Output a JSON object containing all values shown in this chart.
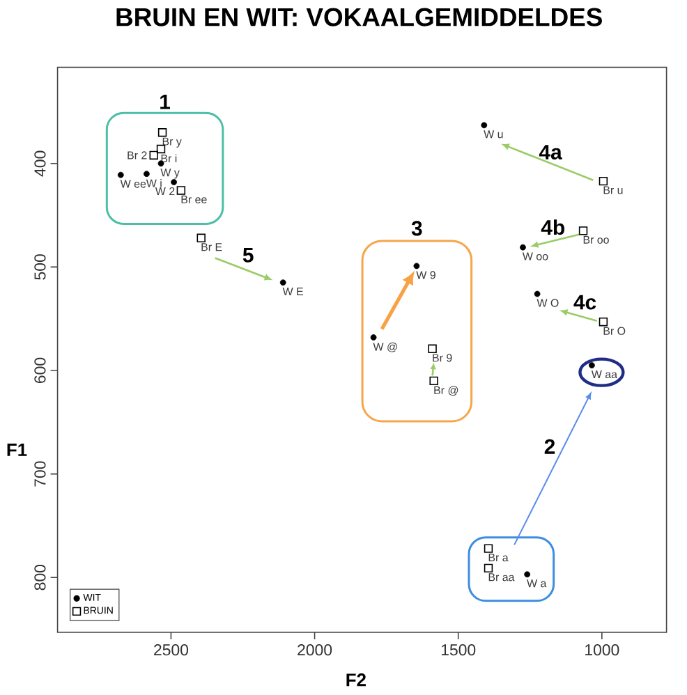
{
  "chart_data": {
    "type": "scatter",
    "title": "BRUIN EN WIT: VOKAALGEMIDDELDES",
    "xlabel": "F2",
    "ylabel": "F1",
    "xlim": [
      2895,
      775
    ],
    "ylim": [
      853,
      307
    ],
    "xticks": [
      2500,
      2000,
      1500,
      1000
    ],
    "yticks": [
      400,
      500,
      600,
      700,
      800
    ],
    "legend": "bottom left",
    "series": [
      {
        "name": "WIT",
        "color": "#000000",
        "marker": "circle",
        "x": [
          2675,
          2585,
          2535,
          2490,
          2110,
          1410,
          1275,
          1225,
          1645,
          1795,
          1035,
          1260
        ],
        "values": [
          411,
          410,
          400,
          418,
          515,
          363,
          481,
          526,
          499,
          568,
          595,
          797
        ],
        "value_labels": [
          "W ee",
          "W i",
          "W y",
          "W 2",
          "W E",
          "W u",
          "W oo",
          "W O",
          "W 9",
          "W @",
          "W aa",
          "W a"
        ]
      },
      {
        "name": "BRUIN",
        "color": "#000000",
        "marker": "square",
        "x": [
          2530,
          2535,
          2560,
          2465,
          2395,
          995,
          1065,
          995,
          1590,
          1585,
          1395,
          1395
        ],
        "values": [
          370,
          386,
          392,
          426,
          472,
          417,
          465,
          553,
          579,
          610,
          772,
          791
        ],
        "value_labels": [
          "Br y",
          "Br i",
          "Br 2",
          "Br ee",
          "Br E",
          "Br u",
          "Br oo",
          "Br O",
          "Br 9",
          "Br @",
          "Br a",
          "Br aa"
        ]
      }
    ],
    "annotations": [
      "1",
      "5",
      "3",
      "4a",
      "4b",
      "4c",
      "2"
    ]
  }
}
